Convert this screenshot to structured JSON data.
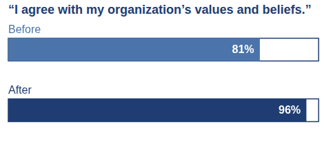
{
  "chart_data": {
    "type": "bar",
    "orientation": "horizontal",
    "title": "“I agree with my organization’s values and beliefs.”",
    "categories": [
      "Before",
      "After"
    ],
    "values": [
      81,
      96
    ],
    "value_labels": [
      "81%",
      "96%"
    ],
    "colors": [
      "#4a74aa",
      "#1f3d72"
    ],
    "xlim": [
      0,
      100
    ],
    "data_labels": true,
    "tick_labels": "y",
    "grid": false
  }
}
